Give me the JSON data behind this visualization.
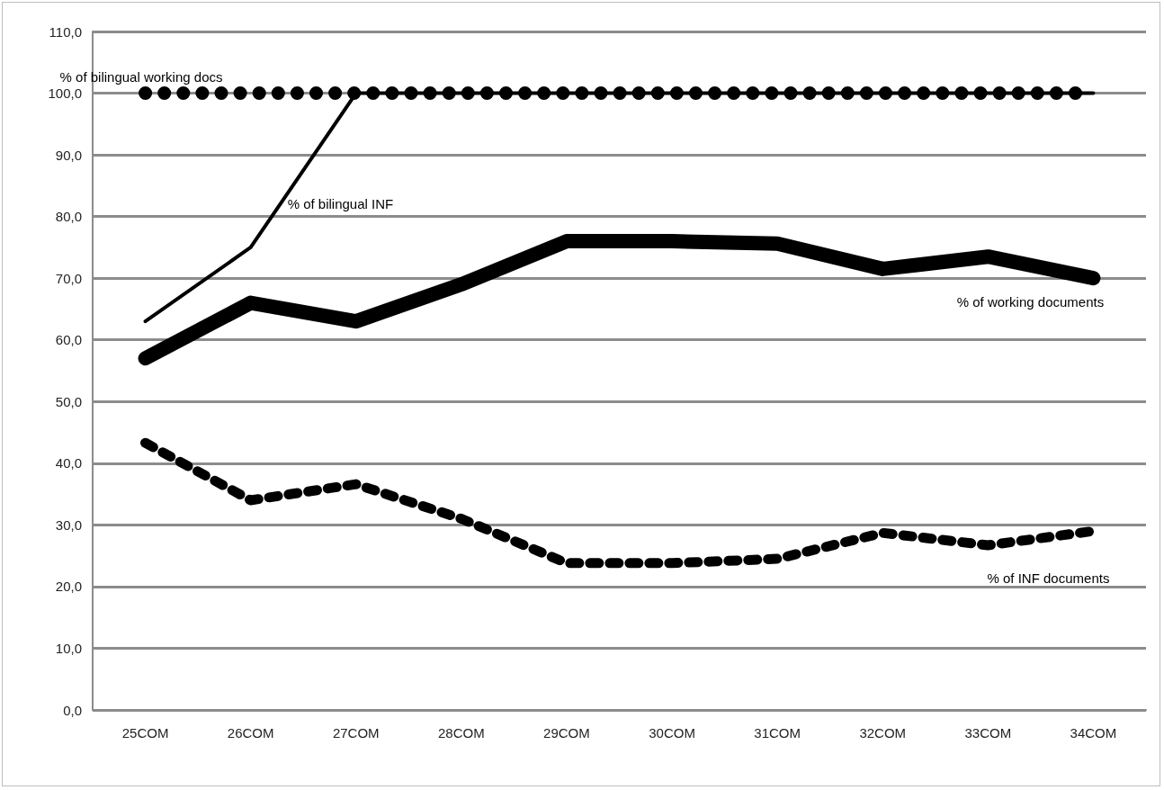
{
  "chart_data": {
    "type": "line",
    "categories": [
      "25COM",
      "26COM",
      "27COM",
      "28COM",
      "29COM",
      "30COM",
      "31COM",
      "32COM",
      "33COM",
      "34COM"
    ],
    "series": [
      {
        "name": "% of bilingual working docs",
        "color": "#000000",
        "line_style": "dotted",
        "values": [
          100,
          100,
          100,
          100,
          100,
          100,
          100,
          100,
          100,
          100
        ]
      },
      {
        "name": "% of bilingual INF",
        "color": "#000000",
        "line_style": "solid",
        "values": [
          63,
          75,
          100,
          100,
          100,
          100,
          100,
          100,
          100,
          100
        ]
      },
      {
        "name": "% of working documents",
        "color": "#000000",
        "line_style": "solid",
        "values": [
          57,
          66,
          63,
          69,
          76,
          76,
          75.6,
          71.5,
          73.5,
          70
        ]
      },
      {
        "name": "% of INF documents",
        "color": "#000000",
        "line_style": "dashed",
        "values": [
          43.3,
          34,
          36.6,
          31,
          23.8,
          23.8,
          24.5,
          28.7,
          26.7,
          29
        ]
      }
    ],
    "ylim": [
      0,
      110
    ],
    "yticks": [
      {
        "value": 0,
        "label": "0,0"
      },
      {
        "value": 10,
        "label": "10,0"
      },
      {
        "value": 20,
        "label": "20,0"
      },
      {
        "value": 30,
        "label": "30,0"
      },
      {
        "value": 40,
        "label": "40,0"
      },
      {
        "value": 50,
        "label": "50,0"
      },
      {
        "value": 60,
        "label": "60,0"
      },
      {
        "value": 70,
        "label": "70,0"
      },
      {
        "value": 80,
        "label": "80,0"
      },
      {
        "value": 90,
        "label": "90,0"
      },
      {
        "value": 100,
        "label": "100,0"
      },
      {
        "value": 110,
        "label": "110,0"
      }
    ],
    "grid": "y",
    "legend": false,
    "marker": "none"
  }
}
